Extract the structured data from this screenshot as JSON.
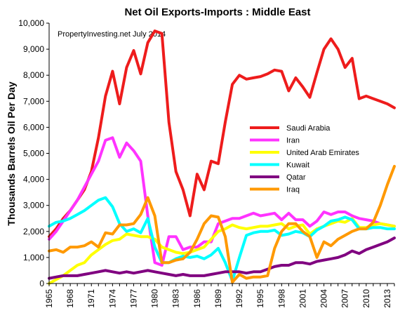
{
  "chart_data": {
    "type": "line",
    "title": "Net Oil Exports-Imports : Middle East",
    "ylabel": "Thousands Barrels Oil Per Day",
    "xlabel": "",
    "annotation": "PropertyInvesting.net  July 2014",
    "ylim": [
      0,
      10000
    ],
    "yticks": [
      "0",
      "1,000",
      "2,000",
      "3,000",
      "4,000",
      "5,000",
      "6,000",
      "7,000",
      "8,000",
      "9,000",
      "10,000"
    ],
    "ytick_values": [
      0,
      1000,
      2000,
      3000,
      4000,
      5000,
      6000,
      7000,
      8000,
      9000,
      10000
    ],
    "xticks": [
      "1965",
      "1968",
      "1971",
      "1974",
      "1977",
      "1980",
      "1983",
      "1986",
      "1989",
      "1992",
      "1995",
      "1998",
      "2001",
      "2004",
      "2007",
      "2010",
      "2013"
    ],
    "xtick_values": [
      1965,
      1968,
      1971,
      1974,
      1977,
      1980,
      1983,
      1986,
      1989,
      1992,
      1995,
      1998,
      2001,
      2004,
      2007,
      2010,
      2013
    ],
    "xlim": [
      1965,
      2014
    ],
    "gridlines": false,
    "legend_position": "right",
    "x": [
      1965,
      1966,
      1967,
      1968,
      1969,
      1970,
      1971,
      1972,
      1973,
      1974,
      1975,
      1976,
      1977,
      1978,
      1979,
      1980,
      1981,
      1982,
      1983,
      1984,
      1985,
      1986,
      1987,
      1988,
      1989,
      1990,
      1991,
      1992,
      1993,
      1994,
      1995,
      1996,
      1997,
      1998,
      1999,
      2000,
      2001,
      2002,
      2003,
      2004,
      2005,
      2006,
      2007,
      2008,
      2009,
      2010,
      2011,
      2012,
      2013,
      2014
    ],
    "series": [
      {
        "name": "Saudi Arabia",
        "color": "#ee1c1c",
        "values": [
          1800,
          2100,
          2500,
          2800,
          3200,
          3600,
          4300,
          5600,
          7200,
          8150,
          6900,
          8300,
          8950,
          8050,
          9250,
          9700,
          9600,
          6200,
          4300,
          3600,
          2600,
          4200,
          3600,
          4700,
          4600,
          6200,
          7650,
          8000,
          7850,
          7900,
          7950,
          8050,
          8200,
          8150,
          7400,
          7900,
          7550,
          7150,
          8100,
          9000,
          9400,
          9000,
          8300,
          8650,
          7100,
          7200,
          7100,
          7000,
          6900,
          6750
        ]
      },
      {
        "name": "Iran",
        "color": "#ff33ff",
        "values": [
          1700,
          2000,
          2400,
          2800,
          3200,
          3700,
          4200,
          4700,
          5500,
          5600,
          4850,
          5400,
          5100,
          4700,
          2600,
          800,
          700,
          1800,
          1800,
          1300,
          1400,
          1400,
          1600,
          1600,
          2300,
          2400,
          2500,
          2500,
          2600,
          2700,
          2600,
          2650,
          2700,
          2450,
          2700,
          2450,
          2450,
          2200,
          2400,
          2750,
          2650,
          2750,
          2750,
          2600,
          2500,
          2450,
          2400,
          2300,
          2250,
          2200
        ]
      },
      {
        "name": "United Arab Emirates",
        "color": "#ffff00",
        "values": [
          0,
          150,
          300,
          500,
          700,
          800,
          1100,
          1300,
          1500,
          1650,
          1700,
          1900,
          1850,
          1800,
          1800,
          1700,
          1400,
          1300,
          1200,
          1150,
          1200,
          1300,
          1400,
          1700,
          2000,
          2100,
          2250,
          2150,
          2100,
          2150,
          2200,
          2200,
          2250,
          2300,
          2100,
          2200,
          2250,
          1900,
          2100,
          2200,
          2300,
          2400,
          2350,
          2500,
          2150,
          2150,
          2250,
          2300,
          2250,
          2200
        ]
      },
      {
        "name": "Kuwait",
        "color": "#00ffff",
        "values": [
          2200,
          2350,
          2400,
          2500,
          2650,
          2800,
          3000,
          3200,
          3300,
          2950,
          2300,
          2000,
          2100,
          1950,
          2500,
          1400,
          800,
          800,
          950,
          1050,
          1000,
          1050,
          950,
          1100,
          1350,
          800,
          100,
          1000,
          1850,
          1950,
          2000,
          2000,
          2050,
          1850,
          1900,
          2000,
          1950,
          1800,
          2050,
          2200,
          2400,
          2450,
          2550,
          2450,
          2100,
          2100,
          2150,
          2150,
          2100,
          2100
        ]
      },
      {
        "name": "Qatar",
        "color": "#800080",
        "values": [
          200,
          250,
          300,
          300,
          300,
          350,
          400,
          450,
          500,
          450,
          400,
          450,
          400,
          450,
          500,
          450,
          400,
          350,
          300,
          350,
          300,
          300,
          300,
          350,
          400,
          450,
          450,
          450,
          400,
          450,
          450,
          550,
          650,
          700,
          700,
          800,
          800,
          750,
          850,
          900,
          950,
          1000,
          1100,
          1250,
          1150,
          1300,
          1400,
          1500,
          1600,
          1750
        ]
      },
      {
        "name": "Iraq",
        "color": "#ff9900",
        "values": [
          1250,
          1300,
          1200,
          1400,
          1400,
          1450,
          1600,
          1400,
          1950,
          1900,
          2250,
          2250,
          2300,
          2650,
          3300,
          2600,
          800,
          800,
          900,
          950,
          1200,
          1700,
          2300,
          2600,
          2550,
          1800,
          50,
          350,
          200,
          250,
          250,
          300,
          1350,
          2000,
          2300,
          2300,
          2000,
          1800,
          1000,
          1600,
          1450,
          1700,
          1850,
          2000,
          2100,
          2100,
          2350,
          3000,
          3800,
          4500
        ]
      }
    ]
  }
}
